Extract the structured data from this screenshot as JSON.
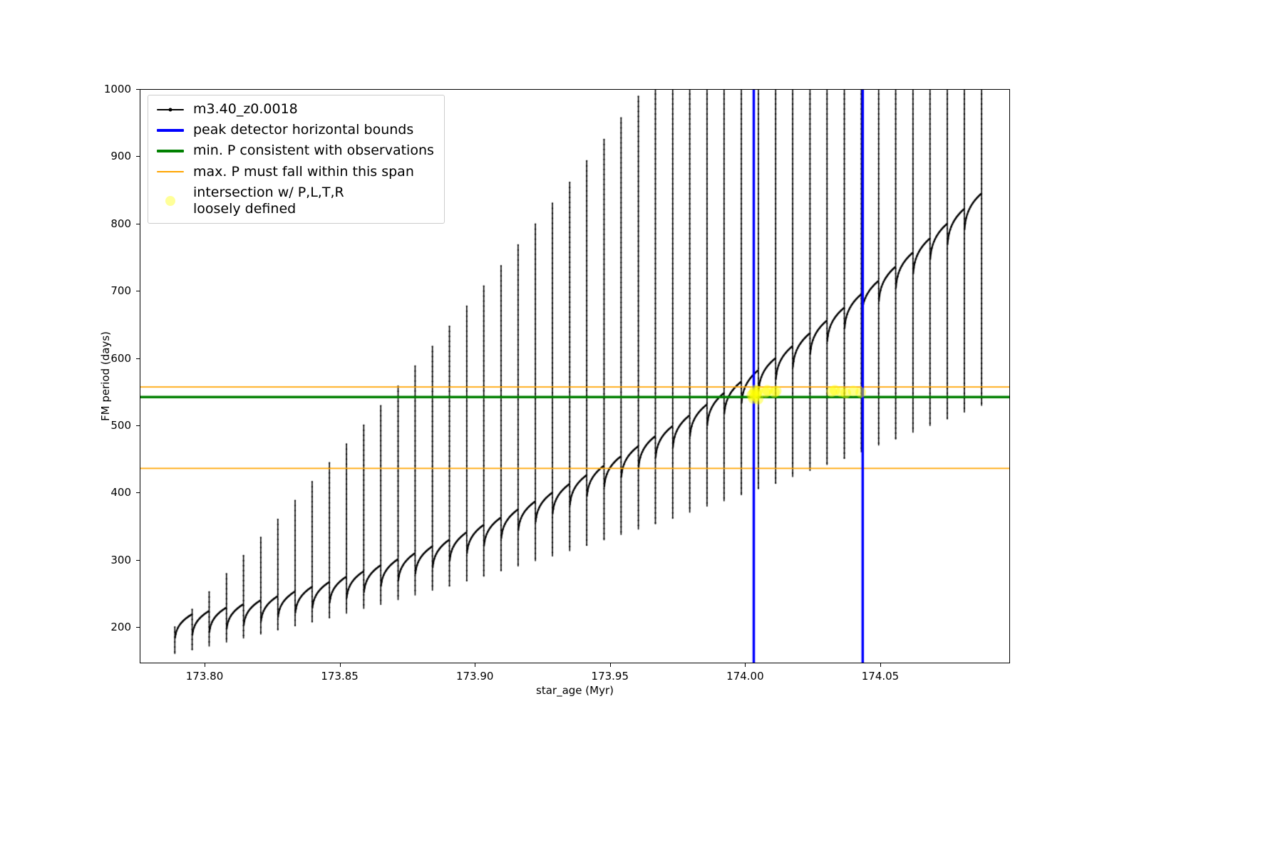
{
  "axes": {
    "xlabel": "star_age (Myr)",
    "ylabel": "FM period (days)",
    "xlim": [
      173.776,
      174.098
    ],
    "ylim": [
      146,
      1000
    ],
    "xticks": [
      {
        "v": 173.8,
        "label": "173.80"
      },
      {
        "v": 173.85,
        "label": "173.85"
      },
      {
        "v": 173.9,
        "label": "173.90"
      },
      {
        "v": 173.95,
        "label": "173.95"
      },
      {
        "v": 174.0,
        "label": "174.00"
      },
      {
        "v": 174.05,
        "label": "174.05"
      }
    ],
    "yticks": [
      {
        "v": 200,
        "label": "200"
      },
      {
        "v": 300,
        "label": "300"
      },
      {
        "v": 400,
        "label": "400"
      },
      {
        "v": 500,
        "label": "500"
      },
      {
        "v": 600,
        "label": "600"
      },
      {
        "v": 700,
        "label": "700"
      },
      {
        "v": 800,
        "label": "800"
      },
      {
        "v": 900,
        "label": "900"
      },
      {
        "v": 1000,
        "label": "1000"
      }
    ]
  },
  "legend": {
    "entries": [
      {
        "label": "m3.40_z0.0018",
        "type": "line-marker",
        "color": "#000000",
        "lw": 2
      },
      {
        "label": "peak detector horizontal bounds",
        "type": "line",
        "color": "#0000ff",
        "lw": 4
      },
      {
        "label": "min. P consistent with observations",
        "type": "line",
        "color": "#008000",
        "lw": 4
      },
      {
        "label": "max. P must fall within this span",
        "type": "line",
        "color": "#ffa500",
        "lw": 2
      },
      {
        "label": "intersection w/ P,L,T,R\nloosely defined",
        "type": "marker",
        "color": "#ffff00",
        "alpha": 0.4
      }
    ]
  },
  "chart_data": {
    "type": "line",
    "series_name": "m3.40_z0.0018",
    "xlabel": "star_age (Myr)",
    "ylabel": "FM period (days)",
    "xlim": [
      173.776,
      174.098
    ],
    "ylim": [
      146,
      1000
    ],
    "grid": false,
    "legend_position": "upper left",
    "description": "Sawtooth pulsation curve: repeating ramps with tall narrow spikes whose peaks grow left to right; spikes past x=173.967 are clipped at the top of the axes (1000).",
    "spikes_columns": [
      "x",
      "peak",
      "crest",
      "spike_min",
      "ramp_start"
    ],
    "spikes": [
      [
        173.789,
        200,
        215,
        160,
        165
      ],
      [
        173.7954,
        226,
        219,
        166,
        169
      ],
      [
        173.8017,
        252,
        224,
        171,
        173
      ],
      [
        173.8081,
        279,
        229,
        177,
        177
      ],
      [
        173.8144,
        306,
        234,
        183,
        182
      ],
      [
        173.8208,
        333,
        240,
        189,
        187
      ],
      [
        173.8271,
        360,
        246,
        195,
        193
      ],
      [
        173.8335,
        388,
        253,
        201,
        199
      ],
      [
        173.8398,
        416,
        260,
        207,
        205
      ],
      [
        173.8462,
        444,
        267,
        214,
        212
      ],
      [
        173.8525,
        472,
        275,
        220,
        220
      ],
      [
        173.8589,
        500,
        283,
        227,
        227
      ],
      [
        173.8652,
        529,
        292,
        233,
        235
      ],
      [
        173.8716,
        558,
        301,
        240,
        244
      ],
      [
        173.8779,
        588,
        310,
        247,
        252
      ],
      [
        173.8843,
        617,
        320,
        254,
        262
      ],
      [
        173.8906,
        647,
        330,
        261,
        271
      ],
      [
        173.897,
        677,
        341,
        268,
        281
      ],
      [
        173.9033,
        707,
        352,
        275,
        292
      ],
      [
        173.9097,
        737,
        363,
        283,
        303
      ],
      [
        173.916,
        768,
        375,
        290,
        314
      ],
      [
        173.9224,
        799,
        387,
        298,
        326
      ],
      [
        173.9287,
        830,
        400,
        305,
        338
      ],
      [
        173.9351,
        861,
        413,
        313,
        350
      ],
      [
        173.9414,
        893,
        426,
        321,
        363
      ],
      [
        173.9478,
        925,
        440,
        329,
        376
      ],
      [
        173.9541,
        957,
        454,
        337,
        390
      ],
      [
        173.9605,
        989,
        469,
        345,
        404
      ],
      [
        173.9668,
        1000,
        484,
        353,
        418
      ],
      [
        173.9732,
        1000,
        499,
        362,
        433
      ],
      [
        173.9795,
        1000,
        515,
        370,
        448
      ],
      [
        173.9859,
        1000,
        531,
        379,
        464
      ],
      [
        173.9922,
        1000,
        548,
        387,
        480
      ],
      [
        173.9986,
        1000,
        565,
        396,
        497
      ],
      [
        174.0049,
        1000,
        582,
        405,
        513
      ],
      [
        174.0113,
        1000,
        600,
        414,
        531
      ],
      [
        174.0176,
        1000,
        618,
        423,
        548
      ],
      [
        174.024,
        1000,
        637,
        432,
        566
      ],
      [
        174.0303,
        1000,
        656,
        441,
        585
      ],
      [
        174.0367,
        1000,
        675,
        451,
        604
      ],
      [
        174.043,
        1000,
        695,
        460,
        623
      ],
      [
        174.0494,
        1000,
        715,
        470,
        643
      ],
      [
        174.0557,
        1000,
        736,
        479,
        663
      ],
      [
        174.0621,
        1000,
        757,
        489,
        683
      ],
      [
        174.0684,
        1000,
        778,
        499,
        704
      ],
      [
        174.0748,
        1000,
        800,
        509,
        725
      ],
      [
        174.0811,
        1000,
        822,
        519,
        747
      ],
      [
        174.0875,
        1000,
        845,
        529,
        769
      ]
    ],
    "vlines": {
      "label": "peak detector horizontal bounds",
      "color": "#0000ff",
      "width": 3.5,
      "x": [
        174.0032,
        174.0435
      ]
    },
    "hline_min_p": {
      "label": "min. P consistent with observations",
      "color": "#008000",
      "width": 3.5,
      "y": 542
    },
    "hlines_span": {
      "label": "max. P must fall within this span",
      "color": "#ffa500",
      "width": 1.8,
      "y": [
        557,
        436
      ]
    },
    "scatter": {
      "label": "intersection w/ P,L,T,R loosely defined",
      "color": "#ffff00",
      "alpha": 0.45,
      "radius": 7.5,
      "points": [
        [
          174.0025,
          545
        ],
        [
          174.003,
          540
        ],
        [
          174.0032,
          548
        ],
        [
          174.0036,
          552
        ],
        [
          174.0038,
          543
        ],
        [
          174.0042,
          547
        ],
        [
          174.0045,
          551
        ],
        [
          174.0048,
          539
        ],
        [
          174.0075,
          549
        ],
        [
          174.0082,
          552
        ],
        [
          174.0108,
          549
        ],
        [
          174.0115,
          551
        ],
        [
          174.032,
          550
        ],
        [
          174.0332,
          552
        ],
        [
          174.0355,
          550
        ],
        [
          174.0372,
          548
        ],
        [
          174.04,
          551
        ],
        [
          174.0428,
          549
        ]
      ]
    }
  }
}
